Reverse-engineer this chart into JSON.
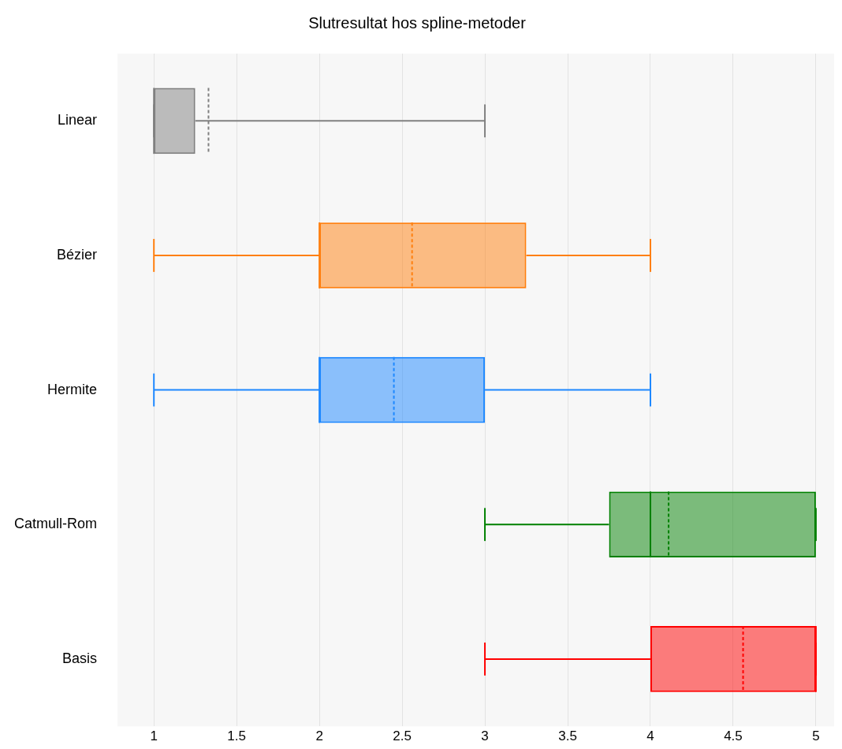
{
  "chart_data": {
    "type": "box",
    "title": "Slutresultat hos spline-metoder",
    "orientation": "horizontal",
    "categories": [
      "Linear",
      "Bézier",
      "Hermite",
      "Catmull-Rom",
      "Basis"
    ],
    "colors": [
      "#808080",
      "#ff7f0e",
      "#1e88ff",
      "#008000",
      "#ff0000"
    ],
    "boxes": [
      {
        "low": 1,
        "q1": 1,
        "median": 1,
        "q3": 1.25,
        "high": 3,
        "mean": 1.33
      },
      {
        "low": 1,
        "q1": 2,
        "median": 2,
        "q3": 3.25,
        "high": 4,
        "mean": 2.56
      },
      {
        "low": 1,
        "q1": 2,
        "median": 2,
        "q3": 3,
        "high": 4,
        "mean": 2.45
      },
      {
        "low": 3,
        "q1": 3.75,
        "median": 4,
        "q3": 5,
        "high": 5,
        "mean": 4.11
      },
      {
        "low": 3,
        "q1": 4,
        "median": 5,
        "q3": 5,
        "high": 5,
        "mean": 4.56
      }
    ],
    "xlim": [
      0.78,
      5.11
    ],
    "xticks": [
      1,
      1.5,
      2,
      2.5,
      3,
      3.5,
      4,
      4.5,
      5
    ],
    "grid": "x"
  }
}
